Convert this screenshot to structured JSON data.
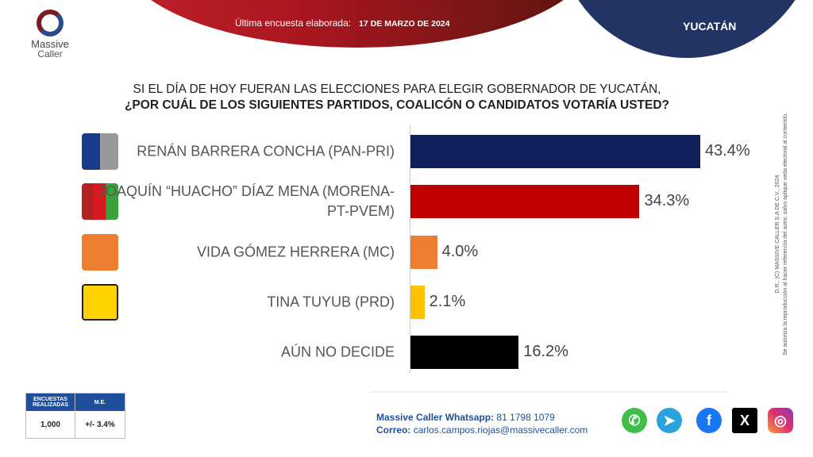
{
  "header": {
    "date_label": "Última encuesta elaborada:",
    "date_value": "17 DE MARZO DE 2024",
    "state": "YUCATÁN"
  },
  "logo": {
    "line1": "Massive",
    "line2": "Caller"
  },
  "question": {
    "line1": "SI EL DÍA DE HOY FUERAN LAS ELECCIONES PARA ELEGIR GOBERNADOR DE YUCATÁN,",
    "line2": "¿POR CUÁL DE LOS SIGUIENTES PARTIDOS, COALICÓN  O CANDIDATOS VOTARÍA USTED?"
  },
  "chart_data": {
    "type": "bar",
    "orientation": "horizontal",
    "categories": [
      "RENÁN BARRERA CONCHA  (PAN-PRI)",
      "JOAQUÍN “HUACHO” DÍAZ MENA (MORENA-PT-PVEM)",
      "VIDA GÓMEZ HERRERA (MC)",
      "TINA TUYUB (PRD)",
      "AÚN NO DECIDE"
    ],
    "values": [
      43.4,
      34.3,
      4.0,
      2.1,
      16.2
    ],
    "value_labels": [
      "43.4%",
      "34.3%",
      "4.0%",
      "2.1%",
      "16.2%"
    ],
    "colors": [
      "#0f1f5c",
      "#c00000",
      "#ed7d31",
      "#ffc000",
      "#000000"
    ],
    "party_logos": [
      "PAN-PRI",
      "MORENA-PT-PVEM",
      "MC",
      "PRD",
      ""
    ],
    "unit": "%",
    "grid": false
  },
  "side_note": {
    "line1": "D.R., (C) MASSIVE CALLER S.A DE C.V., 2024",
    "line2": "Se autoriza la reproducción al hacer referencia del autor, salvo aplique veda electoral al contenido."
  },
  "table": {
    "h1": "ENCUESTAS REALIZADAS",
    "h2": "M.E.",
    "v1": "1,000",
    "v2": "+/- 3.4%"
  },
  "contact": {
    "wa_label": "Massive Caller Whatsapp:",
    "wa_value": "81 1798 1079",
    "mail_label": "Correo:",
    "mail_value": "carlos.campos.riojas@massivecaller.com"
  },
  "social": [
    "whatsapp-icon",
    "telegram-icon",
    "facebook-icon",
    "x-icon",
    "instagram-icon"
  ]
}
